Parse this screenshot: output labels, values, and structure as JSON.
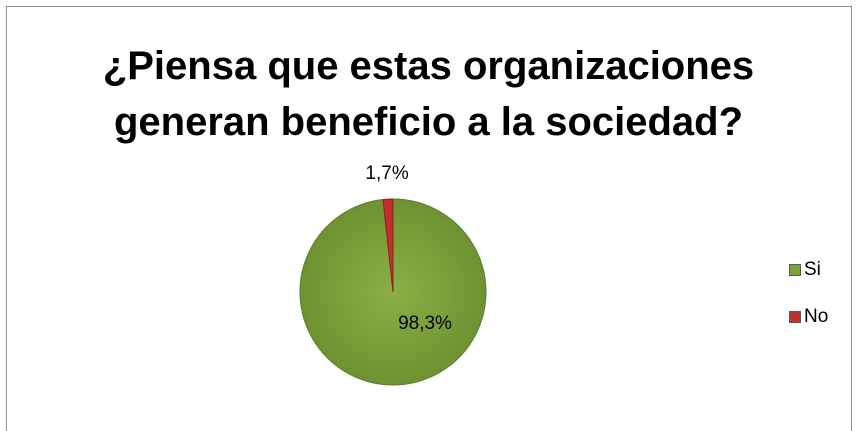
{
  "chart_data": {
    "type": "pie",
    "title": "¿Piensa que estas organizaciones generan beneficio a la sociedad?",
    "title_lines": [
      "¿Piensa que estas organizaciones",
      "generan beneficio a la sociedad?"
    ],
    "categories": [
      "Si",
      "No"
    ],
    "values": [
      98.3,
      1.7
    ],
    "value_labels": [
      "98,3%",
      "1,7%"
    ],
    "colors": [
      "#7ea139",
      "#c0302f"
    ],
    "legend_position": "right"
  }
}
